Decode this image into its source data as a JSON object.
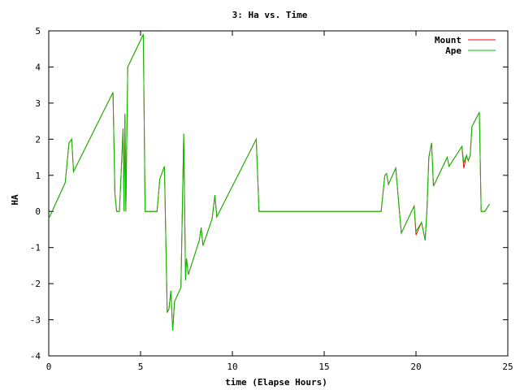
{
  "chart_data": {
    "type": "line",
    "title": "3: Ha vs. Time",
    "xlabel": "time (Elapse Hours)",
    "ylabel": "HA",
    "xlim": [
      0,
      25
    ],
    "ylim": [
      -4,
      5
    ],
    "x_ticks": [
      0,
      5,
      10,
      15,
      20,
      25
    ],
    "y_ticks": [
      -4,
      -3,
      -2,
      -1,
      0,
      1,
      2,
      3,
      4,
      5
    ],
    "grid": false,
    "legend_position": "top-right",
    "series": [
      {
        "name": "Mount",
        "color": "#ff0000",
        "points": [
          [
            0,
            -0.2
          ],
          [
            0.9,
            0.8
          ],
          [
            1.1,
            1.9
          ],
          [
            1.25,
            2.0
          ],
          [
            1.35,
            1.1
          ],
          [
            3.5,
            3.3
          ],
          [
            3.6,
            0.5
          ],
          [
            3.7,
            0.0
          ],
          [
            3.85,
            0.0
          ],
          [
            4.05,
            2.3
          ],
          [
            4.1,
            0.0
          ],
          [
            4.15,
            2.7
          ],
          [
            4.2,
            0.0
          ],
          [
            4.3,
            4.0
          ],
          [
            5.15,
            4.9
          ],
          [
            5.25,
            0.0
          ],
          [
            5.9,
            0.0
          ],
          [
            6.05,
            0.9
          ],
          [
            6.3,
            1.25
          ],
          [
            6.45,
            -2.8
          ],
          [
            6.55,
            -2.7
          ],
          [
            6.65,
            -2.2
          ],
          [
            6.75,
            -3.3
          ],
          [
            6.85,
            -2.5
          ],
          [
            7.2,
            -2.1
          ],
          [
            7.35,
            2.15
          ],
          [
            7.45,
            -1.9
          ],
          [
            7.5,
            -1.3
          ],
          [
            7.6,
            -1.75
          ],
          [
            8.2,
            -0.8
          ],
          [
            8.3,
            -0.45
          ],
          [
            8.4,
            -0.95
          ],
          [
            8.9,
            -0.2
          ],
          [
            9.05,
            0.45
          ],
          [
            9.15,
            -0.15
          ],
          [
            11.3,
            2.0
          ],
          [
            11.45,
            0.0
          ],
          [
            18.1,
            0.0
          ],
          [
            18.3,
            1.0
          ],
          [
            18.4,
            1.05
          ],
          [
            18.5,
            0.75
          ],
          [
            18.9,
            1.2
          ],
          [
            19.2,
            -0.6
          ],
          [
            19.9,
            0.15
          ],
          [
            20.0,
            -0.65
          ],
          [
            20.3,
            -0.3
          ],
          [
            20.5,
            -0.8
          ],
          [
            20.6,
            0.1
          ],
          [
            20.7,
            1.5
          ],
          [
            20.85,
            1.9
          ],
          [
            20.95,
            0.7
          ],
          [
            21.7,
            1.5
          ],
          [
            21.8,
            1.25
          ],
          [
            22.5,
            1.8
          ],
          [
            22.6,
            1.2
          ],
          [
            22.75,
            1.55
          ],
          [
            22.85,
            1.4
          ],
          [
            22.95,
            1.55
          ],
          [
            23.05,
            2.35
          ],
          [
            23.45,
            2.75
          ],
          [
            23.55,
            0.0
          ],
          [
            23.75,
            0.0
          ],
          [
            24.0,
            0.2
          ]
        ]
      },
      {
        "name": "Ape",
        "color": "#00c000",
        "points": [
          [
            0,
            -0.2
          ],
          [
            0.9,
            0.8
          ],
          [
            1.1,
            1.9
          ],
          [
            1.25,
            2.0
          ],
          [
            1.35,
            1.1
          ],
          [
            3.5,
            3.3
          ],
          [
            3.6,
            0.5
          ],
          [
            3.7,
            0.0
          ],
          [
            3.85,
            0.0
          ],
          [
            4.05,
            2.3
          ],
          [
            4.1,
            0.0
          ],
          [
            4.15,
            2.7
          ],
          [
            4.2,
            0.0
          ],
          [
            4.3,
            4.0
          ],
          [
            5.15,
            4.9
          ],
          [
            5.25,
            0.0
          ],
          [
            5.9,
            0.0
          ],
          [
            6.05,
            0.9
          ],
          [
            6.3,
            1.25
          ],
          [
            6.45,
            -2.8
          ],
          [
            6.55,
            -2.7
          ],
          [
            6.65,
            -2.2
          ],
          [
            6.75,
            -3.3
          ],
          [
            6.85,
            -2.5
          ],
          [
            7.2,
            -2.1
          ],
          [
            7.35,
            2.15
          ],
          [
            7.45,
            -1.9
          ],
          [
            7.5,
            -1.3
          ],
          [
            7.6,
            -1.75
          ],
          [
            8.2,
            -0.8
          ],
          [
            8.3,
            -0.45
          ],
          [
            8.4,
            -0.95
          ],
          [
            8.9,
            -0.2
          ],
          [
            9.05,
            0.45
          ],
          [
            9.15,
            -0.15
          ],
          [
            11.3,
            2.0
          ],
          [
            11.45,
            0.0
          ],
          [
            18.1,
            0.0
          ],
          [
            18.3,
            1.0
          ],
          [
            18.4,
            1.05
          ],
          [
            18.5,
            0.75
          ],
          [
            18.9,
            1.2
          ],
          [
            19.2,
            -0.6
          ],
          [
            19.9,
            0.15
          ],
          [
            20.0,
            -0.55
          ],
          [
            20.3,
            -0.3
          ],
          [
            20.5,
            -0.8
          ],
          [
            20.6,
            0.1
          ],
          [
            20.7,
            1.5
          ],
          [
            20.85,
            1.9
          ],
          [
            20.95,
            0.7
          ],
          [
            21.7,
            1.5
          ],
          [
            21.8,
            1.25
          ],
          [
            22.5,
            1.8
          ],
          [
            22.6,
            1.35
          ],
          [
            22.75,
            1.55
          ],
          [
            22.85,
            1.4
          ],
          [
            22.95,
            1.55
          ],
          [
            23.05,
            2.35
          ],
          [
            23.45,
            2.75
          ],
          [
            23.55,
            0.0
          ],
          [
            23.75,
            0.0
          ],
          [
            24.0,
            0.2
          ]
        ]
      }
    ]
  }
}
